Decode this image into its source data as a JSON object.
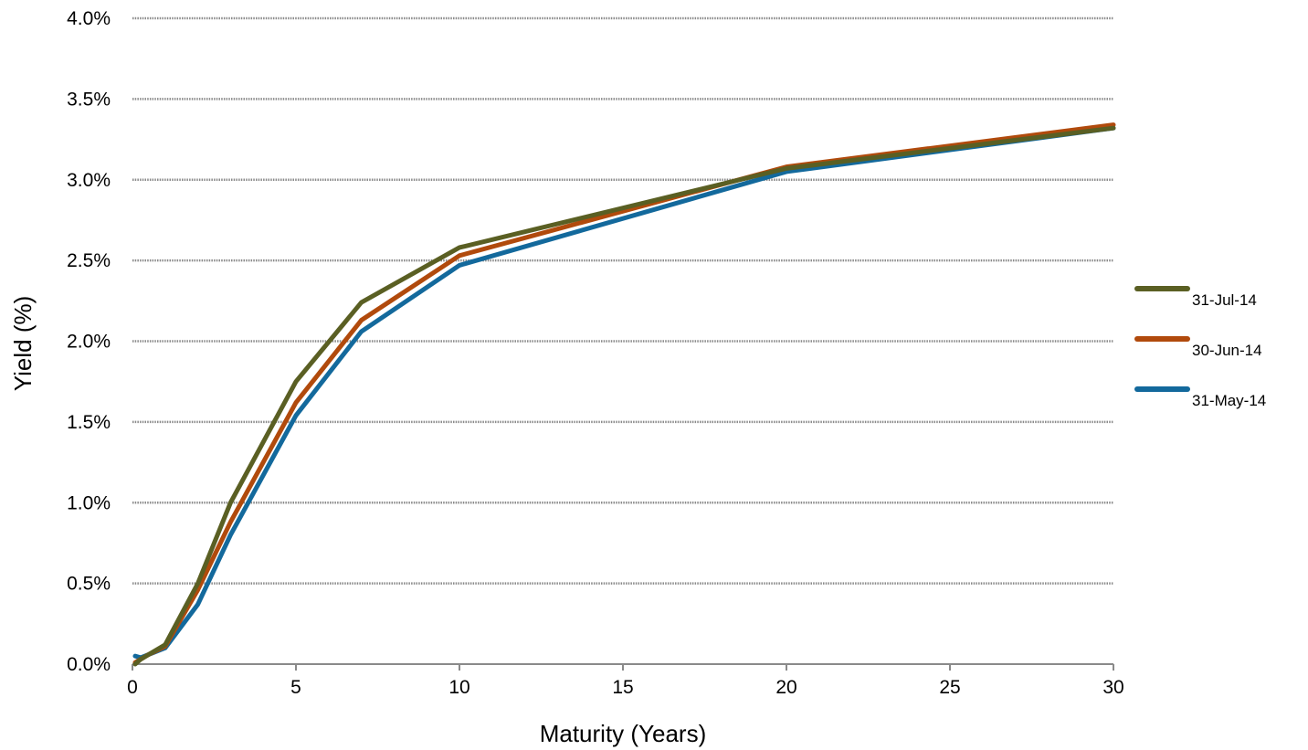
{
  "chart_data": {
    "type": "line",
    "title": "",
    "xlabel": "Maturity (Years)",
    "ylabel": "Yield (%)",
    "xlim": [
      0,
      30
    ],
    "ylim": [
      0,
      4.0
    ],
    "x_ticks": [
      0,
      5,
      10,
      15,
      20,
      25,
      30
    ],
    "x_tick_labels": [
      "0",
      "5",
      "10",
      "15",
      "20",
      "25",
      "30"
    ],
    "y_ticks": [
      0,
      0.5,
      1.0,
      1.5,
      2.0,
      2.5,
      3.0,
      3.5,
      4.0
    ],
    "y_tick_labels": [
      "0.0%",
      "0.5%",
      "1.0%",
      "1.5%",
      "2.0%",
      "2.5%",
      "3.0%",
      "3.5%",
      "4.0%"
    ],
    "grid": true,
    "legend_position": "right",
    "x": [
      0.083,
      0.25,
      0.5,
      1,
      2,
      3,
      5,
      7,
      10,
      20,
      30
    ],
    "series": [
      {
        "name": "31-Jul-14",
        "color": "#5a5f23",
        "values": [
          0.0,
          0.03,
          0.06,
          0.12,
          0.5,
          1.0,
          1.75,
          2.24,
          2.58,
          3.07,
          3.32
        ]
      },
      {
        "name": "30-Jun-14",
        "color": "#b14a0c",
        "values": [
          0.01,
          0.03,
          0.06,
          0.11,
          0.46,
          0.88,
          1.62,
          2.13,
          2.53,
          3.08,
          3.34
        ]
      },
      {
        "name": "31-May-14",
        "color": "#13699c",
        "values": [
          0.05,
          0.04,
          0.06,
          0.1,
          0.37,
          0.8,
          1.54,
          2.06,
          2.47,
          3.05,
          3.32
        ]
      }
    ]
  }
}
